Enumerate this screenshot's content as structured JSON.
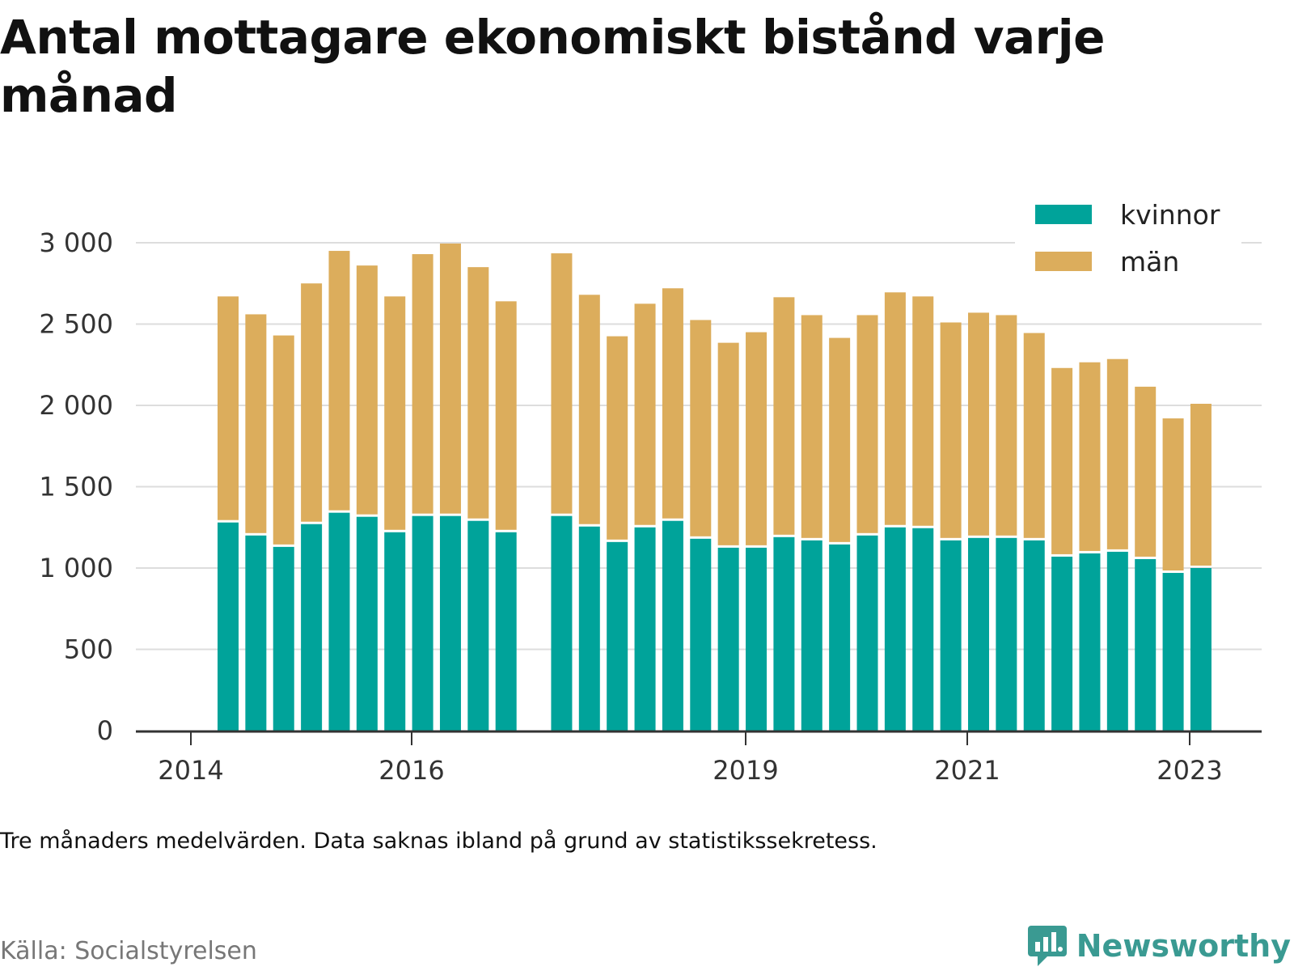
{
  "title": "Antal mottagare ekonomiskt bistånd varje månad",
  "note": "Tre månaders medelvärden. Data saknas ibland på grund av statistikssekretess.",
  "source": "Källa: Socialstyrelsen",
  "brand": "Newsworthy",
  "colors": {
    "kvinnor": "#00a39a",
    "man": "#dcad5c",
    "grid": "#dddddd",
    "axis": "#333333",
    "brand": "#3a9a92"
  },
  "chart_data": {
    "type": "bar",
    "stacked": true,
    "title": "Antal mottagare ekonomiskt bistånd varje månad",
    "x_ticks": [
      "2014",
      "2016",
      "2019",
      "2021",
      "2023"
    ],
    "y_ticks": [
      "0",
      "500",
      "1 000",
      "1 500",
      "2 000",
      "2 500",
      "3 000"
    ],
    "ylim": [
      0,
      3000
    ],
    "grid": true,
    "legend_position": "top-right",
    "categories": [
      "2014-Q2",
      "2014-Q3",
      "2014-Q4",
      "2015-Q1",
      "2015-Q2",
      "2015-Q3",
      "2015-Q4",
      "2016-Q1",
      "2016-Q2",
      "2016-Q3",
      "2016-Q4",
      "2017-Q1",
      "2017-Q2",
      "2017-Q3",
      "2017-Q4",
      "2018-Q1",
      "2018-Q2",
      "2018-Q3",
      "2018-Q4",
      "2019-Q1",
      "2019-Q2",
      "2019-Q3",
      "2019-Q4",
      "2020-Q1",
      "2020-Q2",
      "2020-Q3",
      "2020-Q4",
      "2021-Q1",
      "2021-Q2",
      "2021-Q3",
      "2021-Q4",
      "2022-Q1",
      "2022-Q2",
      "2022-Q3",
      "2022-Q4",
      "2023-Q1",
      "2023-Q2",
      "2023-Q3"
    ],
    "series": [
      {
        "name": "kvinnor",
        "values": [
          1280,
          1200,
          1130,
          1270,
          1340,
          1315,
          1220,
          1320,
          1320,
          1290,
          1220,
          null,
          1320,
          1255,
          1160,
          1250,
          1290,
          1180,
          1125,
          1125,
          1190,
          1170,
          1145,
          1200,
          1250,
          1245,
          1170,
          1185,
          1185,
          1170,
          1070,
          1090,
          1100,
          1055,
          970,
          1000,
          null,
          null
        ]
      },
      {
        "name": "män",
        "values": [
          1390,
          1360,
          1300,
          1480,
          1610,
          1545,
          1450,
          1610,
          1675,
          1560,
          1420,
          null,
          1615,
          1425,
          1265,
          1375,
          1430,
          1345,
          1260,
          1325,
          1475,
          1385,
          1270,
          1355,
          1445,
          1425,
          1340,
          1385,
          1370,
          1275,
          1160,
          1175,
          1185,
          1060,
          950,
          1010,
          null,
          null
        ]
      }
    ]
  }
}
